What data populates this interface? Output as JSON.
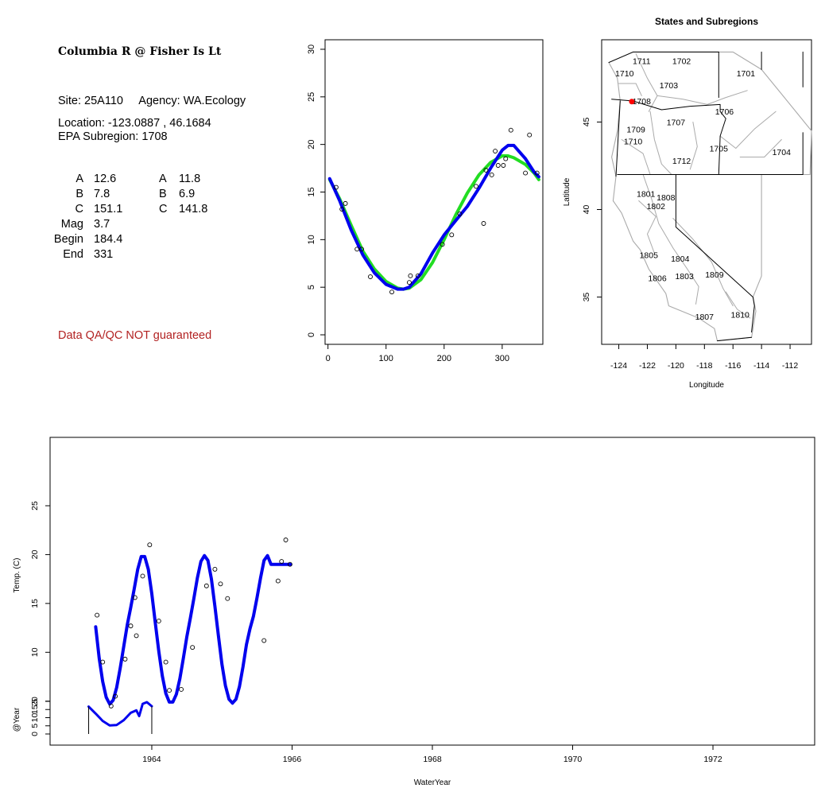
{
  "info_panel": {
    "title": "Columbia R @ Fisher Is Lt",
    "site_line": "Site: 25A110     Agency: WA.Ecology",
    "location_line": "Location: -123.0887 , 46.1684",
    "subregion_line": "EPA Subregion: 1708",
    "params_left": [
      {
        "label": "A",
        "value": "12.6"
      },
      {
        "label": "B",
        "value": "7.8"
      },
      {
        "label": "C",
        "value": "151.1"
      },
      {
        "label": "Mag",
        "value": "3.7"
      },
      {
        "label": "Begin",
        "value": "184.4"
      },
      {
        "label": "End",
        "value": "331"
      }
    ],
    "params_right": [
      {
        "label": "A",
        "value": "11.8"
      },
      {
        "label": "B",
        "value": "6.9"
      },
      {
        "label": "C",
        "value": "141.8"
      }
    ],
    "disclaimer": "Data QA/QC NOT guaranteed",
    "disclaimer_color": "#b22222"
  },
  "colors": {
    "fit_blue": "#0000ee",
    "fit_green": "#22dd22",
    "obs": "#000000",
    "map_lines": "#aaaaaa",
    "site_marker": "#ff0000"
  },
  "chart_data": [
    {
      "type": "scatter",
      "title": "",
      "xlabel": "",
      "ylabel": "",
      "xlim": [
        -5,
        370
      ],
      "ylim": [
        -1,
        31
      ],
      "x_ticks": [
        0,
        100,
        200,
        300
      ],
      "y_ticks": [
        0,
        5,
        10,
        15,
        20,
        25,
        30
      ],
      "points": [
        [
          14,
          15.5
        ],
        [
          24,
          13.2
        ],
        [
          30,
          13.8
        ],
        [
          50,
          9
        ],
        [
          58,
          9
        ],
        [
          73,
          6.1
        ],
        [
          110,
          4.5
        ],
        [
          140,
          5.5
        ],
        [
          142,
          6.2
        ],
        [
          155,
          6.2
        ],
        [
          197,
          9.5
        ],
        [
          213,
          10.5
        ],
        [
          227,
          12.7
        ],
        [
          255,
          15.6
        ],
        [
          268,
          11.7
        ],
        [
          272,
          17.3
        ],
        [
          282,
          16.8
        ],
        [
          288,
          19.3
        ],
        [
          293,
          17.8
        ],
        [
          302,
          17.8
        ],
        [
          306,
          18.5
        ],
        [
          315,
          21.5
        ],
        [
          340,
          17
        ],
        [
          347,
          21
        ],
        [
          360,
          17
        ]
      ],
      "series": [
        {
          "color": "green",
          "x": [
            3,
            20,
            40,
            60,
            80,
            100,
            120,
            130,
            140,
            160,
            180,
            200,
            220,
            240,
            260,
            280,
            300,
            310,
            320,
            340,
            355,
            363
          ],
          "y": [
            16.3,
            14.3,
            11.5,
            8.8,
            6.9,
            5.6,
            4.9,
            4.8,
            4.9,
            5.8,
            7.6,
            10.0,
            12.6,
            14.9,
            16.8,
            18.1,
            18.8,
            18.8,
            18.6,
            17.9,
            17.0,
            16.3
          ]
        },
        {
          "color": "blue",
          "x": [
            3,
            20,
            40,
            60,
            80,
            100,
            120,
            130,
            140,
            160,
            180,
            200,
            220,
            240,
            260,
            280,
            300,
            310,
            320,
            340,
            355,
            363
          ],
          "y": [
            16.4,
            14.1,
            11.0,
            8.4,
            6.5,
            5.3,
            4.8,
            4.8,
            5.0,
            6.4,
            8.6,
            10.5,
            12.0,
            13.5,
            15.4,
            17.5,
            19.4,
            19.9,
            19.9,
            18.5,
            17.1,
            16.6
          ]
        }
      ]
    },
    {
      "type": "map",
      "title": "States and Subregions",
      "xlabel": "Longitude",
      "ylabel": "Latitude",
      "xlim": [
        -125.2,
        -110.5
      ],
      "ylim": [
        32.3,
        49.7
      ],
      "x_ticks": [
        -124,
        -122,
        -120,
        -118,
        -116,
        -114,
        -112
      ],
      "y_ticks": [
        35,
        40,
        45
      ],
      "site": {
        "lon": -123.0887,
        "lat": 46.1684
      },
      "region_labels": [
        {
          "text": "1711",
          "lon": -122.4,
          "lat": 48.5
        },
        {
          "text": "1702",
          "lon": -119.6,
          "lat": 48.5
        },
        {
          "text": "1701",
          "lon": -115.1,
          "lat": 47.8
        },
        {
          "text": "1710",
          "lon": -123.6,
          "lat": 47.8
        },
        {
          "text": "1703",
          "lon": -120.5,
          "lat": 47.1
        },
        {
          "text": "1708",
          "lon": -122.4,
          "lat": 46.2
        },
        {
          "text": "1706",
          "lon": -116.6,
          "lat": 45.6
        },
        {
          "text": "1707",
          "lon": -120.0,
          "lat": 45.0
        },
        {
          "text": "1709",
          "lon": -122.8,
          "lat": 44.6
        },
        {
          "text": "1710",
          "lon": -123.0,
          "lat": 43.9
        },
        {
          "text": "1705",
          "lon": -117.0,
          "lat": 43.5
        },
        {
          "text": "1704",
          "lon": -112.6,
          "lat": 43.3
        },
        {
          "text": "1712",
          "lon": -119.6,
          "lat": 42.8
        },
        {
          "text": "1801",
          "lon": -122.1,
          "lat": 40.9
        },
        {
          "text": "1808",
          "lon": -120.7,
          "lat": 40.7
        },
        {
          "text": "1802",
          "lon": -121.4,
          "lat": 40.2
        },
        {
          "text": "1805",
          "lon": -121.9,
          "lat": 37.4
        },
        {
          "text": "1804",
          "lon": -119.7,
          "lat": 37.2
        },
        {
          "text": "1806",
          "lon": -121.3,
          "lat": 36.1
        },
        {
          "text": "1803",
          "lon": -119.4,
          "lat": 36.2
        },
        {
          "text": "1809",
          "lon": -117.3,
          "lat": 36.3
        },
        {
          "text": "1807",
          "lon": -118.0,
          "lat": 33.9
        },
        {
          "text": "1810",
          "lon": -115.5,
          "lat": 34.0
        }
      ]
    },
    {
      "type": "line",
      "title": "",
      "xlabel": "WaterYear",
      "ylabel": "Temp. (C)",
      "ylabel2": "@Year",
      "xlim": [
        1962.55,
        1973.45
      ],
      "ylim": [
        0.5,
        32
      ],
      "x_ticks": [
        1964,
        1966,
        1968,
        1970,
        1972
      ],
      "y_ticks": [
        5,
        10,
        15,
        20,
        25
      ],
      "y2_ticks": [
        0,
        5,
        10,
        15,
        20
      ],
      "points": [
        [
          1963.22,
          13.8
        ],
        [
          1963.3,
          9
        ],
        [
          1963.42,
          4.5
        ],
        [
          1963.48,
          5.5
        ],
        [
          1963.62,
          9.3
        ],
        [
          1963.7,
          12.7
        ],
        [
          1963.76,
          15.6
        ],
        [
          1963.78,
          11.7
        ],
        [
          1963.87,
          17.8
        ],
        [
          1963.97,
          21
        ],
        [
          1964.1,
          13.2
        ],
        [
          1964.2,
          9
        ],
        [
          1964.25,
          6.1
        ],
        [
          1964.42,
          6.2
        ],
        [
          1964.58,
          10.5
        ],
        [
          1964.78,
          16.8
        ],
        [
          1964.9,
          18.5
        ],
        [
          1964.98,
          17
        ],
        [
          1965.08,
          15.5
        ],
        [
          1965.6,
          11.2
        ],
        [
          1965.8,
          17.3
        ],
        [
          1965.85,
          19.3
        ],
        [
          1965.91,
          21.5
        ],
        [
          1965.97,
          19
        ]
      ],
      "series": [
        {
          "name": "",
          "color": "blue",
          "x": [
            1963.2,
            1963.25,
            1963.3,
            1963.35,
            1963.4,
            1963.45,
            1963.5,
            1963.55,
            1963.6,
            1963.65,
            1963.7,
            1963.75,
            1963.8,
            1963.85,
            1963.9,
            1963.95,
            1964.0,
            1964.05,
            1964.1,
            1964.15,
            1964.2,
            1964.25,
            1964.3,
            1964.35,
            1964.4,
            1964.45,
            1964.5,
            1964.55,
            1964.6,
            1964.65,
            1964.7,
            1964.75,
            1964.8,
            1964.85,
            1964.9,
            1964.95,
            1965.0,
            1965.05,
            1965.1,
            1965.15,
            1965.2,
            1965.25,
            1965.3,
            1965.35,
            1965.4,
            1965.45,
            1965.5,
            1965.55,
            1965.6,
            1965.65,
            1965.7,
            1965.75,
            1965.8,
            1965.85,
            1965.9,
            1965.95,
            1965.98
          ],
          "y": [
            12.6,
            9.4,
            7.0,
            5.4,
            4.7,
            5.1,
            6.4,
            8.4,
            10.6,
            12.8,
            14.6,
            16.5,
            18.5,
            19.8,
            19.8,
            18.5,
            16.0,
            13.0,
            10.1,
            7.6,
            5.8,
            4.9,
            4.9,
            5.7,
            7.3,
            9.4,
            11.6,
            13.5,
            15.5,
            17.6,
            19.3,
            19.9,
            19.4,
            17.5,
            14.7,
            11.7,
            8.8,
            6.6,
            5.2,
            4.8,
            5.2,
            6.5,
            8.5,
            10.8,
            12.4,
            13.7,
            15.6,
            17.6,
            19.4,
            19.9,
            19.0,
            19.0,
            19.0,
            19.0,
            19.0,
            19.0,
            19.0
          ]
        },
        {
          "name": "",
          "color": "blue",
          "panel": "bottom",
          "x": [
            1963.1,
            1963.2,
            1963.3,
            1963.4,
            1963.5,
            1963.6,
            1963.7,
            1963.78,
            1963.82,
            1963.87,
            1963.93,
            1964.0
          ],
          "y": [
            16.8,
            12.5,
            8.0,
            5.2,
            5.5,
            8.5,
            13.0,
            14.5,
            11.0,
            18.5,
            19.5,
            17.0
          ]
        }
      ]
    }
  ]
}
